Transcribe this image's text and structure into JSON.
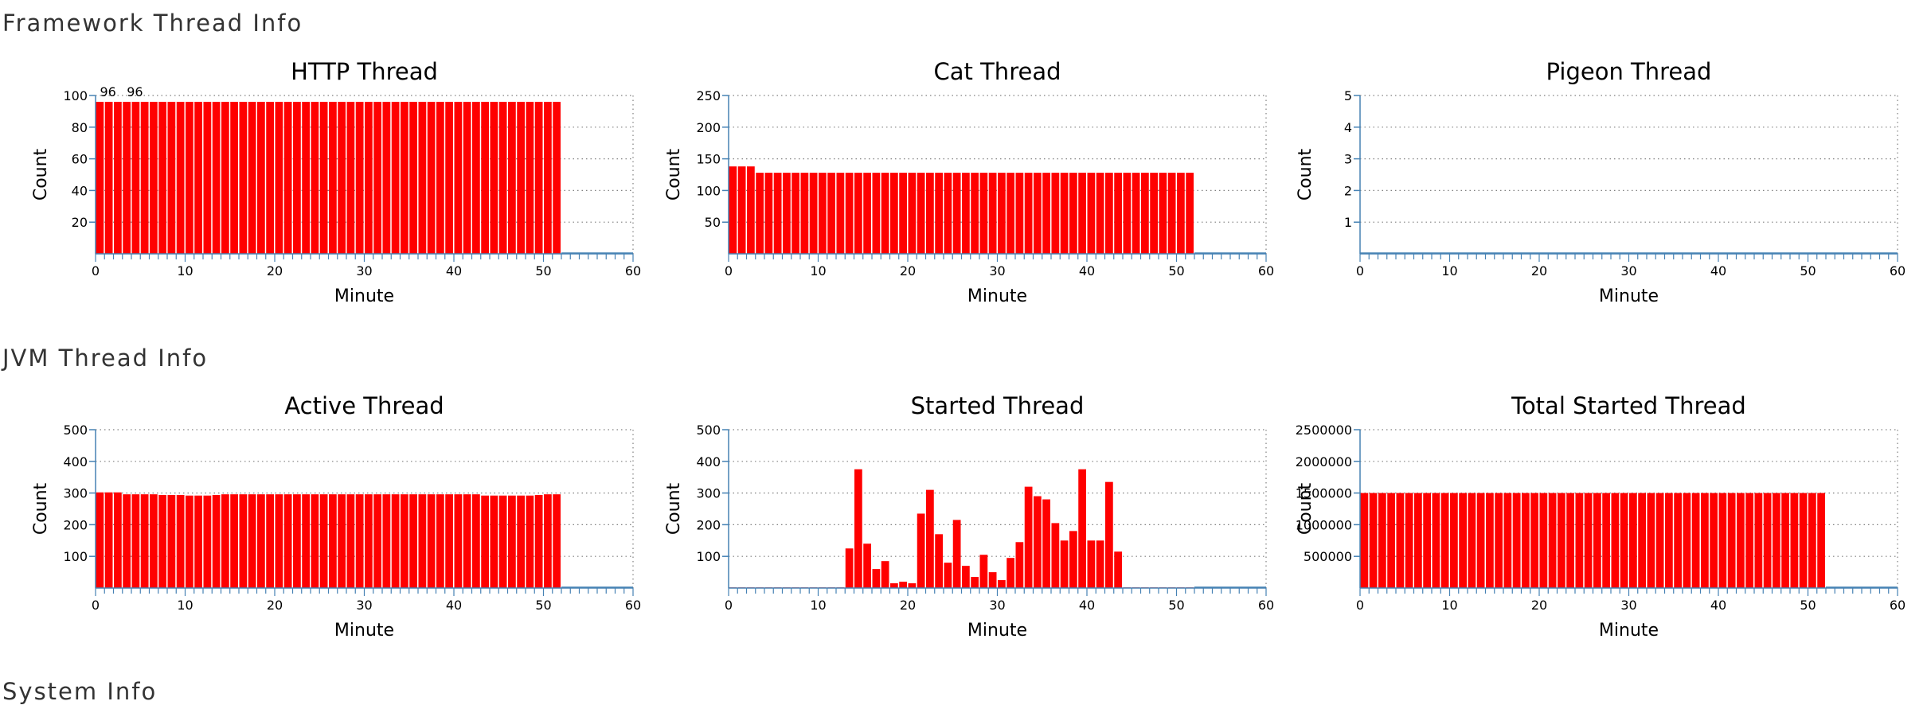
{
  "sections": [
    {
      "title": "Framework Thread Info"
    },
    {
      "title": "JVM Thread Info"
    },
    {
      "title": "System Info"
    }
  ],
  "colors": {
    "bar": "#ff0000",
    "axis": "#4682b4",
    "grid": "#808080"
  },
  "chart_data": [
    {
      "type": "bar",
      "title": "HTTP Thread",
      "xlabel": "Minute",
      "ylabel": "Count",
      "xlim": [
        0,
        60
      ],
      "ylim": [
        0,
        100
      ],
      "xticks": [
        0,
        10,
        20,
        30,
        40,
        50,
        60
      ],
      "yticks": [
        20,
        40,
        60,
        80,
        100
      ],
      "x": [
        0,
        1,
        2,
        3,
        4,
        5,
        6,
        7,
        8,
        9,
        10,
        11,
        12,
        13,
        14,
        15,
        16,
        17,
        18,
        19,
        20,
        21,
        22,
        23,
        24,
        25,
        26,
        27,
        28,
        29,
        30,
        31,
        32,
        33,
        34,
        35,
        36,
        37,
        38,
        39,
        40,
        41,
        42,
        43,
        44,
        45,
        46,
        47,
        48,
        49,
        50,
        51
      ],
      "values": [
        96,
        96,
        96,
        96,
        96,
        96,
        96,
        96,
        96,
        96,
        96,
        96,
        96,
        96,
        96,
        96,
        96,
        96,
        96,
        96,
        96,
        96,
        96,
        96,
        96,
        96,
        96,
        96,
        96,
        96,
        96,
        96,
        96,
        96,
        96,
        96,
        96,
        96,
        96,
        96,
        96,
        96,
        96,
        96,
        96,
        96,
        96,
        96,
        96,
        96,
        96,
        96
      ],
      "data_labels": [
        {
          "x": 0,
          "text": "96"
        },
        {
          "x": 3,
          "text": "96"
        }
      ],
      "grid": true
    },
    {
      "type": "bar",
      "title": "Cat Thread",
      "xlabel": "Minute",
      "ylabel": "Count",
      "xlim": [
        0,
        60
      ],
      "ylim": [
        0,
        250
      ],
      "xticks": [
        0,
        10,
        20,
        30,
        40,
        50,
        60
      ],
      "yticks": [
        50,
        100,
        150,
        200,
        250
      ],
      "x": [
        0,
        1,
        2,
        3,
        4,
        5,
        6,
        7,
        8,
        9,
        10,
        11,
        12,
        13,
        14,
        15,
        16,
        17,
        18,
        19,
        20,
        21,
        22,
        23,
        24,
        25,
        26,
        27,
        28,
        29,
        30,
        31,
        32,
        33,
        34,
        35,
        36,
        37,
        38,
        39,
        40,
        41,
        42,
        43,
        44,
        45,
        46,
        47,
        48,
        49,
        50,
        51
      ],
      "values": [
        138,
        138,
        138,
        128,
        128,
        128,
        128,
        128,
        128,
        128,
        128,
        128,
        128,
        128,
        128,
        128,
        128,
        128,
        128,
        128,
        128,
        128,
        128,
        128,
        128,
        128,
        128,
        128,
        128,
        128,
        128,
        128,
        128,
        128,
        128,
        128,
        128,
        128,
        128,
        128,
        128,
        128,
        128,
        128,
        128,
        128,
        128,
        128,
        128,
        128,
        128,
        128
      ],
      "grid": true
    },
    {
      "type": "bar",
      "title": "Pigeon Thread",
      "xlabel": "Minute",
      "ylabel": "Count",
      "xlim": [
        0,
        60
      ],
      "ylim": [
        0,
        5
      ],
      "xticks": [
        0,
        10,
        20,
        30,
        40,
        50,
        60
      ],
      "yticks": [
        1,
        2,
        3,
        4,
        5
      ],
      "x": [],
      "values": [],
      "grid": true
    },
    {
      "type": "bar",
      "title": "Active Thread",
      "xlabel": "Minute",
      "ylabel": "Count",
      "xlim": [
        0,
        60
      ],
      "ylim": [
        0,
        500
      ],
      "xticks": [
        0,
        10,
        20,
        30,
        40,
        50,
        60
      ],
      "yticks": [
        100,
        200,
        300,
        400,
        500
      ],
      "x": [
        0,
        1,
        2,
        3,
        4,
        5,
        6,
        7,
        8,
        9,
        10,
        11,
        12,
        13,
        14,
        15,
        16,
        17,
        18,
        19,
        20,
        21,
        22,
        23,
        24,
        25,
        26,
        27,
        28,
        29,
        30,
        31,
        32,
        33,
        34,
        35,
        36,
        37,
        38,
        39,
        40,
        41,
        42,
        43,
        44,
        45,
        46,
        47,
        48,
        49,
        50,
        51
      ],
      "values": [
        302,
        302,
        302,
        296,
        296,
        296,
        296,
        294,
        294,
        294,
        292,
        292,
        292,
        294,
        296,
        296,
        296,
        296,
        296,
        296,
        296,
        296,
        296,
        296,
        296,
        296,
        296,
        296,
        296,
        296,
        296,
        296,
        296,
        296,
        296,
        296,
        296,
        296,
        296,
        296,
        296,
        296,
        296,
        292,
        292,
        292,
        292,
        292,
        292,
        294,
        296,
        296
      ],
      "grid": true
    },
    {
      "type": "bar",
      "title": "Started Thread",
      "xlabel": "Minute",
      "ylabel": "Count",
      "xlim": [
        0,
        60
      ],
      "ylim": [
        0,
        500
      ],
      "xticks": [
        0,
        10,
        20,
        30,
        40,
        50,
        60
      ],
      "yticks": [
        100,
        200,
        300,
        400,
        500
      ],
      "x": [
        0,
        1,
        2,
        3,
        4,
        5,
        6,
        7,
        8,
        9,
        10,
        11,
        12,
        13,
        14,
        15,
        16,
        17,
        18,
        19,
        20,
        21,
        22,
        23,
        24,
        25,
        26,
        27,
        28,
        29,
        30,
        31,
        32,
        33,
        34,
        35,
        36,
        37,
        38,
        39,
        40,
        41,
        42,
        43,
        44,
        45,
        46,
        47,
        48,
        49,
        50,
        51
      ],
      "values": [
        2,
        2,
        2,
        2,
        2,
        2,
        2,
        2,
        2,
        2,
        2,
        2,
        2,
        125,
        375,
        140,
        60,
        85,
        15,
        20,
        15,
        235,
        310,
        170,
        80,
        215,
        70,
        35,
        105,
        50,
        25,
        95,
        145,
        320,
        290,
        280,
        205,
        150,
        180,
        375,
        150,
        150,
        335,
        115,
        2,
        2,
        2,
        2,
        2,
        2,
        2,
        2
      ],
      "grid": true
    },
    {
      "type": "bar",
      "title": "Total Started Thread",
      "xlabel": "Minute",
      "ylabel": "Count",
      "xlim": [
        0,
        60
      ],
      "ylim": [
        0,
        2500000
      ],
      "xticks": [
        0,
        10,
        20,
        30,
        40,
        50,
        60
      ],
      "yticks": [
        500000,
        1000000,
        1500000,
        2000000,
        2500000
      ],
      "x": [
        0,
        1,
        2,
        3,
        4,
        5,
        6,
        7,
        8,
        9,
        10,
        11,
        12,
        13,
        14,
        15,
        16,
        17,
        18,
        19,
        20,
        21,
        22,
        23,
        24,
        25,
        26,
        27,
        28,
        29,
        30,
        31,
        32,
        33,
        34,
        35,
        36,
        37,
        38,
        39,
        40,
        41,
        42,
        43,
        44,
        45,
        46,
        47,
        48,
        49,
        50,
        51
      ],
      "values": [
        1500000,
        1500000,
        1500000,
        1500000,
        1500000,
        1500000,
        1500000,
        1500000,
        1500000,
        1500000,
        1500000,
        1500000,
        1500000,
        1500000,
        1500000,
        1500000,
        1500000,
        1500000,
        1500000,
        1500000,
        1500000,
        1500000,
        1500000,
        1500000,
        1500000,
        1500000,
        1500000,
        1500000,
        1500000,
        1500000,
        1500000,
        1500000,
        1500000,
        1500000,
        1500000,
        1500000,
        1500000,
        1500000,
        1500000,
        1500000,
        1500000,
        1500000,
        1500000,
        1500000,
        1500000,
        1500000,
        1500000,
        1500000,
        1500000,
        1500000,
        1500000,
        1500000
      ],
      "grid": true
    }
  ]
}
